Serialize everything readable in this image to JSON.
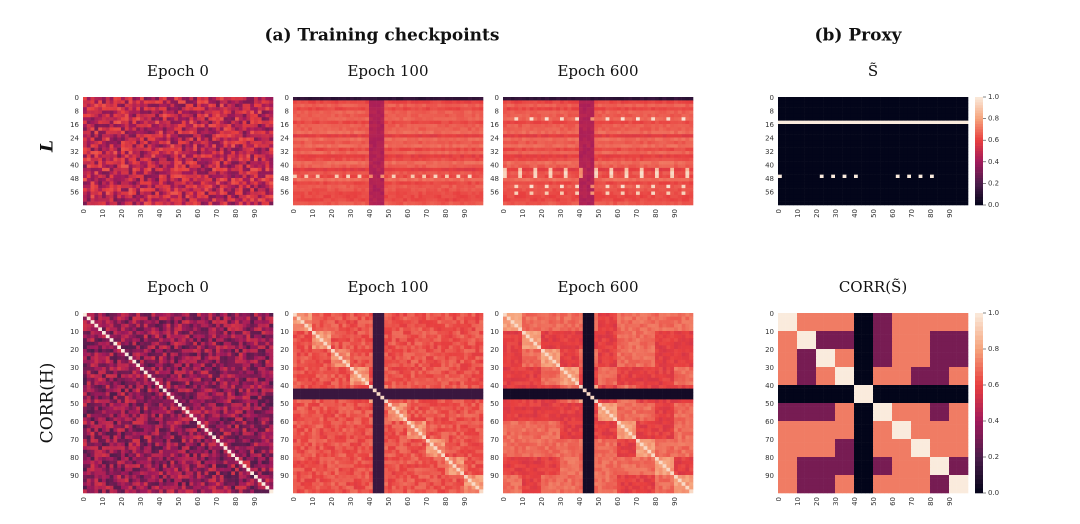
{
  "headers": [
    "(a) Training checkpoints",
    "(b) Proxy"
  ],
  "rows": [
    {
      "row_label": "L",
      "panel_titles": [
        "Epoch 0",
        "Epoch 100",
        "Epoch 600",
        "S̃"
      ],
      "y_ticks": [
        "0",
        "8",
        "16",
        "24",
        "32",
        "40",
        "48",
        "56"
      ],
      "x_ticks": [
        "0",
        "10",
        "20",
        "30",
        "40",
        "50",
        "60",
        "70",
        "80",
        "90"
      ]
    },
    {
      "row_label": "CORR(H)",
      "panel_titles": [
        "Epoch 0",
        "Epoch 100",
        "Epoch 600",
        "CORR(S̃)"
      ],
      "y_ticks": [
        "0",
        "10",
        "20",
        "30",
        "40",
        "50",
        "60",
        "70",
        "80",
        "90"
      ],
      "x_ticks": [
        "0",
        "10",
        "20",
        "30",
        "40",
        "50",
        "60",
        "70",
        "80",
        "90"
      ]
    }
  ],
  "colorbar_ticks": [
    "0.0",
    "0.2",
    "0.4",
    "0.6",
    "0.8",
    "1.0"
  ]
}
